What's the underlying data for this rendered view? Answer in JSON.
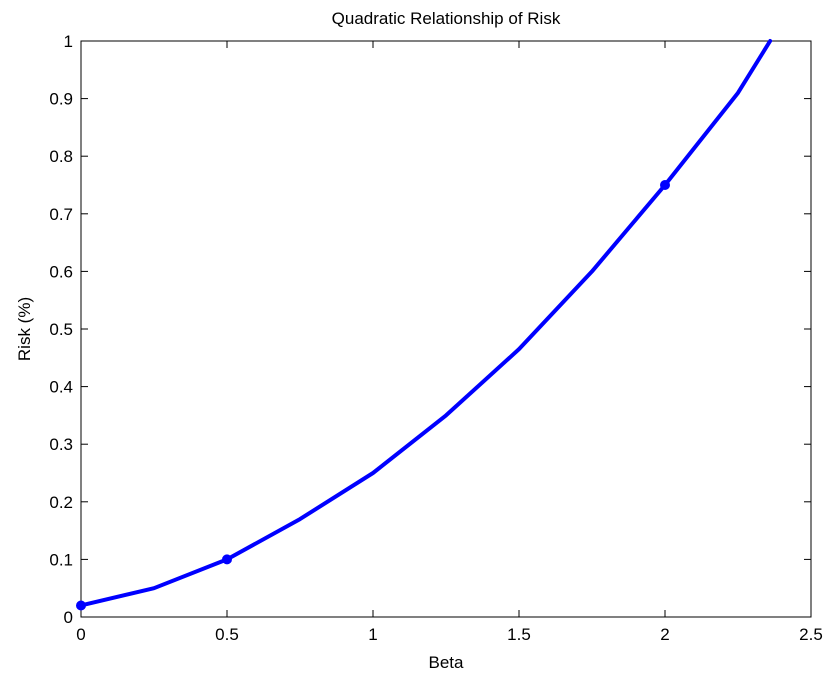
{
  "chart_data": {
    "type": "line",
    "title": "Quadratic Relationship of Risk",
    "xlabel": "Beta",
    "ylabel": "Risk (%)",
    "xlim": [
      0,
      2.5
    ],
    "ylim": [
      0,
      1
    ],
    "xticks": [
      0,
      0.5,
      1,
      1.5,
      2,
      2.5
    ],
    "xtick_labels": [
      "0",
      "0.5",
      "1",
      "1.5",
      "2",
      "2.5"
    ],
    "yticks": [
      0,
      0.1,
      0.2,
      0.3,
      0.4,
      0.5,
      0.6,
      0.7,
      0.8,
      0.9,
      1
    ],
    "ytick_labels": [
      "0",
      "0.1",
      "0.2",
      "0.3",
      "0.4",
      "0.5",
      "0.6",
      "0.7",
      "0.8",
      "0.9",
      "1"
    ],
    "grid": false,
    "series": [
      {
        "color": "#0000ff",
        "x": [
          0,
          0.25,
          0.5,
          0.75,
          1.0,
          1.25,
          1.5,
          1.75,
          2.0,
          2.25,
          2.36
        ],
        "y": [
          0.02,
          0.05,
          0.1,
          0.17,
          0.25,
          0.35,
          0.465,
          0.6,
          0.75,
          0.91,
          1.0
        ]
      }
    ],
    "markers": {
      "color": "#0000ff",
      "x": [
        0,
        0.5,
        2
      ],
      "y": [
        0.02,
        0.1,
        0.75
      ]
    }
  }
}
